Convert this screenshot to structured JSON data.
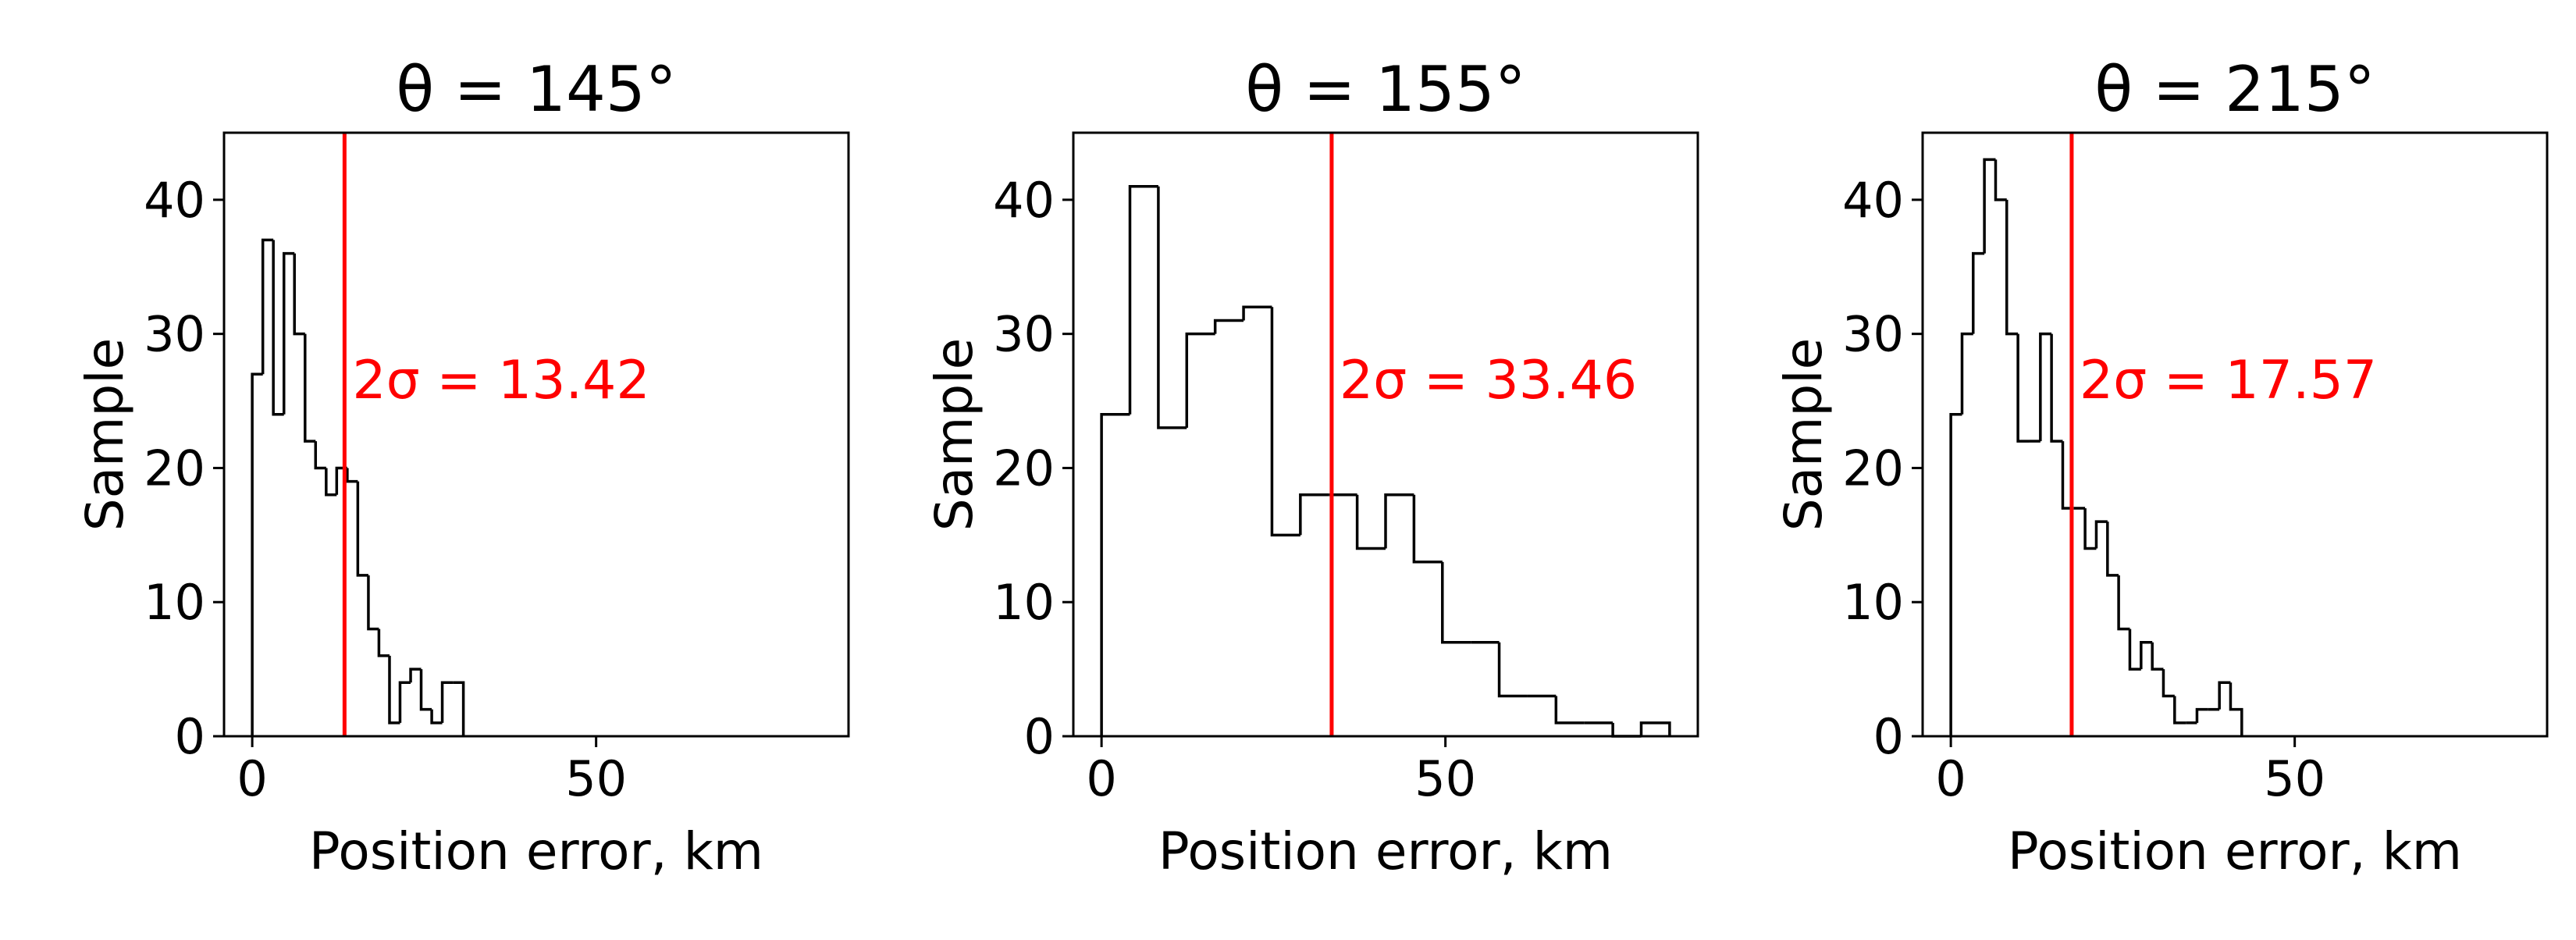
{
  "chart_data": [
    {
      "type": "histogram",
      "title": "θ = 145°",
      "xlabel": "Position error, km",
      "ylabel": "Sample",
      "bins": [
        0,
        1.54,
        3.07,
        4.61,
        6.14,
        7.68,
        9.21,
        10.75,
        12.28,
        13.82,
        15.35,
        16.89,
        18.42,
        19.96,
        21.49,
        23.03,
        24.56,
        26.1,
        27.63,
        29.17,
        30.7
      ],
      "values": [
        27,
        37,
        24,
        36,
        30,
        22,
        20,
        18,
        20,
        19,
        12,
        8,
        6,
        1,
        4,
        5,
        2,
        1,
        4,
        4
      ],
      "color": "#000000",
      "xlim": [
        -4.1,
        86.7
      ],
      "ylim": [
        0,
        45
      ],
      "xticks": [
        0,
        50
      ],
      "yticks": [
        0,
        10,
        20,
        30,
        40
      ],
      "vline": {
        "value": 13.42,
        "label": "2σ = 13.42",
        "color": "#ff0000"
      }
    },
    {
      "type": "histogram",
      "title": "θ = 155°",
      "xlabel": "Position error, km",
      "ylabel": "Sample",
      "bins": [
        0,
        4.13,
        8.26,
        12.39,
        16.52,
        20.65,
        24.78,
        28.91,
        33.04,
        37.17,
        41.3,
        45.43,
        49.56,
        53.69,
        57.82,
        61.95,
        66.08,
        70.21,
        74.34,
        78.47,
        82.6
      ],
      "values": [
        24,
        41,
        23,
        30,
        31,
        32,
        15,
        18,
        18,
        14,
        18,
        13,
        7,
        7,
        3,
        3,
        1,
        1,
        0,
        1
      ],
      "color": "#000000",
      "xlim": [
        -4.1,
        86.7
      ],
      "ylim": [
        0,
        45
      ],
      "xticks": [
        0,
        50
      ],
      "yticks": [
        0,
        10,
        20,
        30,
        40
      ],
      "vline": {
        "value": 33.46,
        "label": "2σ = 33.46",
        "color": "#ff0000"
      }
    },
    {
      "type": "histogram",
      "title": "θ = 215°",
      "xlabel": "Position error, km",
      "ylabel": "Sample",
      "bins": [
        0,
        1.63,
        3.25,
        4.88,
        6.51,
        8.13,
        9.76,
        11.39,
        13.02,
        14.64,
        16.27,
        17.9,
        19.52,
        21.15,
        22.78,
        24.4,
        26.03,
        27.66,
        29.29,
        30.91,
        32.54,
        34.17,
        35.79,
        37.42,
        39.05,
        40.67,
        42.3
      ],
      "values": [
        24,
        30,
        36,
        43,
        40,
        30,
        22,
        22,
        30,
        22,
        17,
        17,
        14,
        16,
        12,
        8,
        5,
        7,
        5,
        3,
        1,
        1,
        2,
        2,
        4,
        2
      ],
      "color": "#000000",
      "xlim": [
        -4.1,
        86.7
      ],
      "ylim": [
        0,
        45
      ],
      "xticks": [
        0,
        50
      ],
      "yticks": [
        0,
        10,
        20,
        30,
        40
      ],
      "vline": {
        "value": 17.57,
        "label": "2σ = 17.57",
        "color": "#ff0000"
      }
    }
  ]
}
